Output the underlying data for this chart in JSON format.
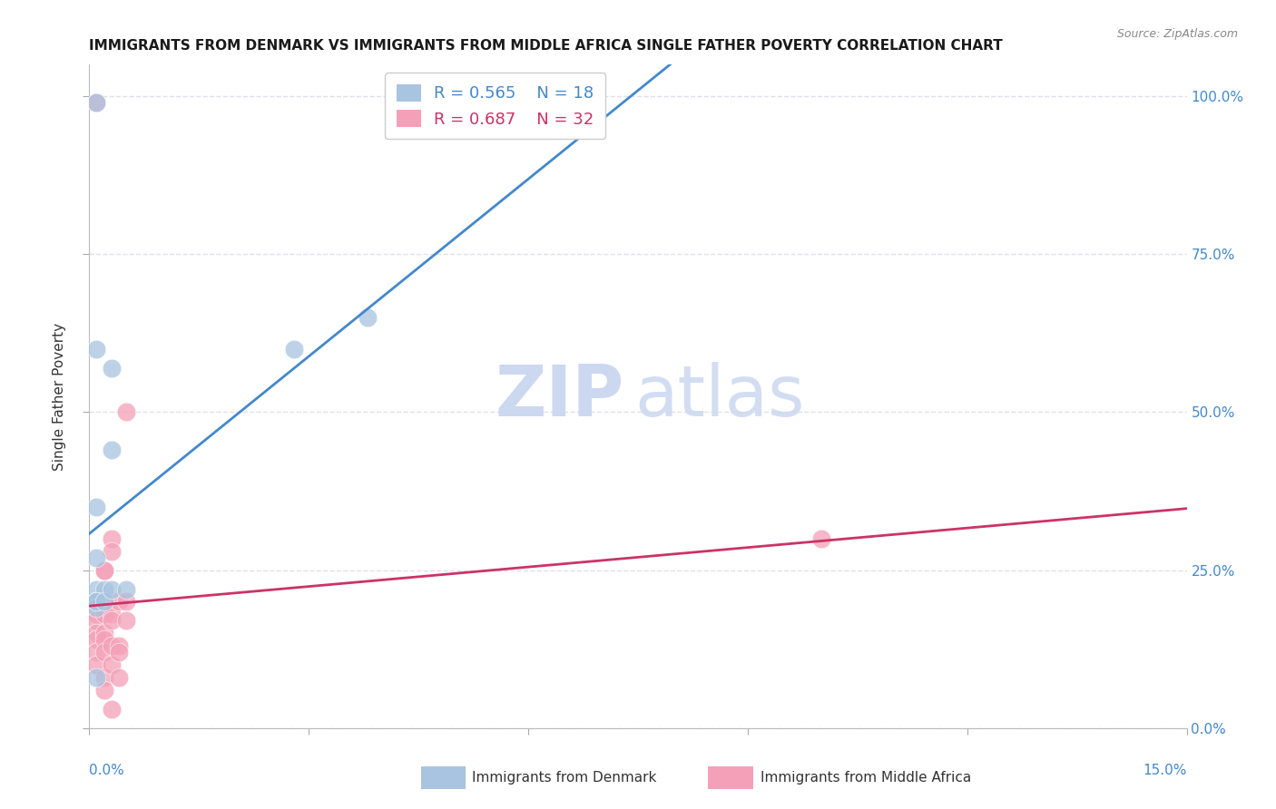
{
  "title": "IMMIGRANTS FROM DENMARK VS IMMIGRANTS FROM MIDDLE AFRICA SINGLE FATHER POVERTY CORRELATION CHART",
  "source": "Source: ZipAtlas.com",
  "ylabel": "Single Father Poverty",
  "legend1_r": "0.565",
  "legend1_n": "18",
  "legend2_r": "0.687",
  "legend2_n": "32",
  "legend1_label": "Immigrants from Denmark",
  "legend2_label": "Immigrants from Middle Africa",
  "denmark_color": "#a8c4e0",
  "middle_africa_color": "#f4a0b8",
  "denmark_line_color": "#4488cc",
  "middle_africa_line_color": "#cc3366",
  "denmark_points_x": [
    0.001,
    0.001,
    0.003,
    0.003,
    0.001,
    0.001,
    0.001,
    0.001,
    0.002,
    0.001,
    0.001,
    0.001,
    0.002,
    0.003,
    0.005,
    0.001,
    0.038,
    0.028
  ],
  "denmark_points_y": [
    0.99,
    0.6,
    0.44,
    0.57,
    0.35,
    0.27,
    0.22,
    0.2,
    0.22,
    0.2,
    0.19,
    0.2,
    0.2,
    0.22,
    0.22,
    0.08,
    0.65,
    0.6
  ],
  "africa_points_x": [
    0.001,
    0.001,
    0.001,
    0.001,
    0.001,
    0.001,
    0.001,
    0.001,
    0.002,
    0.002,
    0.002,
    0.002,
    0.002,
    0.002,
    0.002,
    0.002,
    0.002,
    0.003,
    0.003,
    0.003,
    0.003,
    0.003,
    0.003,
    0.003,
    0.004,
    0.004,
    0.004,
    0.004,
    0.005,
    0.005,
    0.005,
    0.1
  ],
  "africa_points_y": [
    0.99,
    0.2,
    0.18,
    0.17,
    0.15,
    0.14,
    0.12,
    0.1,
    0.25,
    0.25,
    0.2,
    0.18,
    0.15,
    0.14,
    0.12,
    0.08,
    0.06,
    0.3,
    0.28,
    0.18,
    0.17,
    0.13,
    0.1,
    0.03,
    0.2,
    0.13,
    0.12,
    0.08,
    0.5,
    0.2,
    0.17,
    0.3
  ],
  "xlim": [
    0.0,
    0.15
  ],
  "ylim": [
    0.0,
    1.05
  ],
  "background_color": "#ffffff",
  "watermark_color": "#ccd8f0",
  "grid_color": "#e0e0e8",
  "right_axis_color": "#4488cc"
}
